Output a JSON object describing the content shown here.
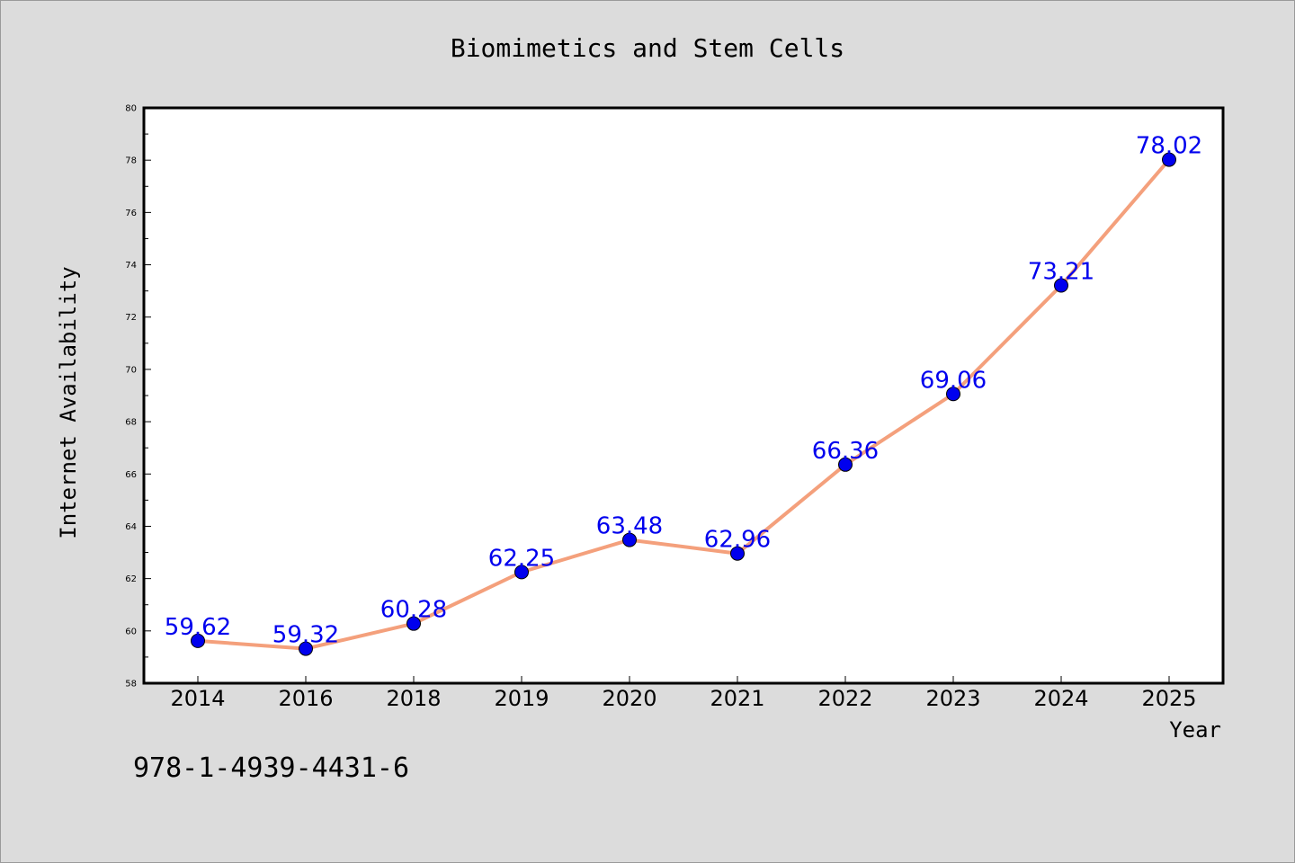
{
  "chart_data": {
    "type": "line",
    "title": "Biomimetics and Stem Cells",
    "xlabel": "Year",
    "ylabel": "Internet Availability",
    "categories": [
      "2014",
      "2016",
      "2018",
      "2019",
      "2020",
      "2021",
      "2022",
      "2023",
      "2024",
      "2025"
    ],
    "values": [
      59.62,
      59.32,
      60.28,
      62.25,
      63.48,
      62.96,
      66.36,
      69.06,
      73.21,
      78.02
    ],
    "data_labels": [
      "59.62",
      "59.32",
      "60.28",
      "62.25",
      "63.48",
      "62.96",
      "66.36",
      "69.06",
      "73.21",
      "78.02"
    ],
    "ylim": [
      58,
      80
    ],
    "yticks": [
      58,
      60,
      62,
      64,
      66,
      68,
      70,
      72,
      74,
      76,
      78,
      80
    ],
    "ytick_labels": [
      "58",
      "60",
      "62",
      "64",
      "66",
      "68",
      "70",
      "72",
      "74",
      "76",
      "78",
      "80"
    ],
    "grid": false,
    "line_color": "#f4a07c",
    "marker_color": "#0000ee",
    "label_color": "#0000ee"
  },
  "footer_text": "978-1-4939-4431-6"
}
